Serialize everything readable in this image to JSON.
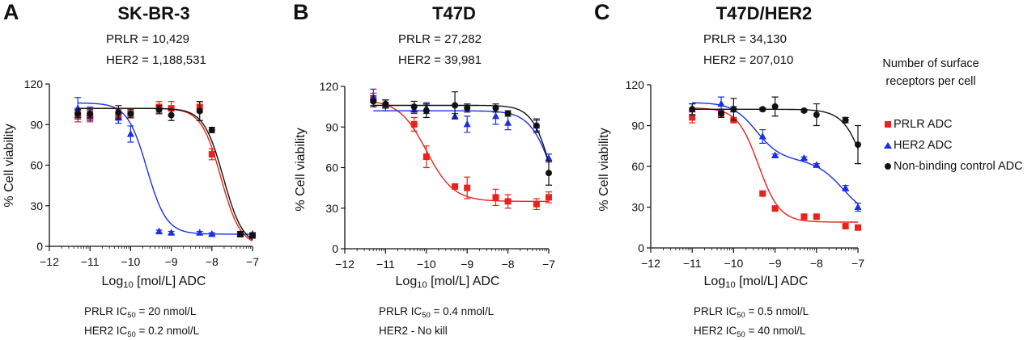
{
  "colors": {
    "prlr": "#e8231b",
    "her2": "#1a2fe6",
    "control": "#111111"
  },
  "legend": {
    "header_line1": "Number of surface",
    "header_line2": "receptors per cell",
    "items": [
      {
        "label": "PRLR ADC",
        "marker": "square",
        "color": "#e8231b"
      },
      {
        "label": "HER2 ADC",
        "marker": "triangle",
        "color": "#1a2fe6"
      },
      {
        "label": "Non-binding control ADC",
        "marker": "circle",
        "color": "#111111"
      }
    ]
  },
  "chart_data": [
    {
      "type": "scatter",
      "panel_letter": "A",
      "title": "SK-BR-3",
      "receptors": {
        "prlr": "PRLR = 10,429",
        "her2": "HER2 = 1,188,531"
      },
      "xlabel": {
        "pre": "Log",
        "sub": "10",
        "post": " [mol/L] ADC"
      },
      "ylabel": "% Cell viability",
      "xlim": [
        -12,
        -7
      ],
      "ylim": [
        0,
        120
      ],
      "xticks": [
        -12,
        -11,
        -10,
        -9,
        -8,
        -7
      ],
      "yticks": [
        0,
        30,
        60,
        90,
        120
      ],
      "ic50": [
        {
          "pre": "PRLR IC",
          "sub": "50",
          "post": " = 20 nmol/L"
        },
        {
          "pre": "HER2 IC",
          "sub": "50",
          "post": " = 0.2 nmol/L"
        }
      ],
      "series": [
        {
          "name": "PRLR ADC",
          "key": "prlr",
          "x": [
            -11.3,
            -11,
            -10.3,
            -10,
            -9.3,
            -9,
            -8.3,
            -8,
            -7.3,
            -7
          ],
          "y": [
            97,
            96,
            96,
            98,
            103,
            102,
            103,
            68,
            9,
            8
          ],
          "err": [
            5,
            4,
            5,
            3,
            4,
            5,
            4,
            4,
            2,
            2
          ],
          "fit": {
            "bottom": 0,
            "phases": [
              {
                "span": 102,
                "logIC50": -7.78,
                "hill": 1.8
              }
            ]
          }
        },
        {
          "name": "HER2 ADC",
          "key": "her2",
          "x": [
            -11.3,
            -11,
            -10.3,
            -10,
            -9.3,
            -9,
            -8.3,
            -8,
            -7.3,
            -7
          ],
          "y": [
            102,
            98,
            95,
            83,
            11,
            10,
            10,
            9,
            9,
            9
          ],
          "err": [
            8,
            5,
            4,
            6,
            1,
            1,
            1,
            1,
            1,
            1
          ],
          "fit": {
            "bottom": 9,
            "phases": [
              {
                "span": 97,
                "logIC50": -9.6,
                "hill": 1.8
              }
            ]
          }
        },
        {
          "name": "Non-binding control ADC",
          "key": "control",
          "x": [
            -11.3,
            -11,
            -10.3,
            -10,
            -9.3,
            -9,
            -8.3,
            -8,
            -7.3,
            -7
          ],
          "y": [
            98,
            98,
            99,
            98,
            101,
            97,
            100,
            86,
            9,
            8
          ],
          "err": [
            3,
            3,
            5,
            3,
            3,
            4,
            7,
            2,
            2,
            2
          ],
          "fit": {
            "bottom": 0,
            "phases": [
              {
                "span": 102,
                "logIC50": -7.72,
                "hill": 1.8
              }
            ]
          }
        }
      ]
    },
    {
      "type": "scatter",
      "panel_letter": "B",
      "title": "T47D",
      "receptors": {
        "prlr": "PRLR = 27,282",
        "her2": "HER2 = 39,981"
      },
      "xlabel": {
        "pre": "Log",
        "sub": "10",
        "post": " [mol/L] ADC"
      },
      "ylabel": "% Cell viability",
      "xlim": [
        -12,
        -7
      ],
      "ylim": [
        0,
        120
      ],
      "xticks": [
        -12,
        -11,
        -10,
        -9,
        -8,
        -7
      ],
      "yticks": [
        0,
        30,
        60,
        90,
        120
      ],
      "ic50": [
        {
          "pre": "PRLR IC",
          "sub": "50",
          "post": " = 0.4 nmol/L"
        },
        {
          "pre": "HER2 - No kill",
          "sub": "",
          "post": ""
        }
      ],
      "series": [
        {
          "name": "PRLR ADC",
          "key": "prlr",
          "x": [
            -11.3,
            -11,
            -10.3,
            -10,
            -9.3,
            -9,
            -8.3,
            -8,
            -7.3,
            -7
          ],
          "y": [
            110,
            106,
            92,
            68,
            46,
            45,
            38,
            35,
            33,
            38
          ],
          "err": [
            5,
            4,
            5,
            8,
            1,
            8,
            6,
            5,
            4,
            4
          ],
          "fit": {
            "bottom": 35,
            "phases": [
              {
                "span": 75,
                "logIC50": -10.0,
                "hill": 1.3
              }
            ]
          }
        },
        {
          "name": "HER2 ADC",
          "key": "her2",
          "x": [
            -11.3,
            -11,
            -10.3,
            -10,
            -9.3,
            -9,
            -8.3,
            -8,
            -7.3,
            -7
          ],
          "y": [
            112,
            106,
            103,
            104,
            98,
            92,
            98,
            93,
            91,
            67
          ],
          "err": [
            6,
            4,
            3,
            4,
            2,
            6,
            6,
            5,
            4,
            3
          ],
          "fit": {
            "bottom": 0,
            "phases": [
              {
                "span": 102,
                "logIC50": -6.85,
                "hill": 1.5
              }
            ]
          }
        },
        {
          "name": "Non-binding control ADC",
          "key": "control",
          "x": [
            -11.3,
            -11,
            -10.3,
            -10,
            -9.3,
            -9,
            -8.3,
            -8,
            -7.3,
            -7
          ],
          "y": [
            109,
            107,
            105,
            102,
            106,
            104,
            104,
            100,
            91,
            56
          ],
          "err": [
            4,
            3,
            4,
            5,
            10,
            3,
            3,
            2,
            5,
            9
          ],
          "fit": {
            "bottom": 0,
            "phases": [
              {
                "span": 106,
                "logIC50": -6.9,
                "hill": 1.8
              }
            ]
          }
        }
      ]
    },
    {
      "type": "scatter",
      "panel_letter": "C",
      "title": "T47D/HER2",
      "receptors": {
        "prlr": "PRLR = 34,130",
        "her2": "HER2 = 207,010"
      },
      "xlabel": {
        "pre": "Log",
        "sub": "10",
        "post": " [mol/L] ADC"
      },
      "ylabel": "% Cell viability",
      "xlim": [
        -12,
        -7
      ],
      "ylim": [
        0,
        120
      ],
      "xticks": [
        -12,
        -11,
        -10,
        -9,
        -8,
        -7
      ],
      "yticks": [
        0,
        30,
        60,
        90,
        120
      ],
      "ic50": [
        {
          "pre": "PRLR IC",
          "sub": "50",
          "post": " = 0.5 nmol/L"
        },
        {
          "pre": "HER2 IC",
          "sub": "50",
          "post": " = 40 nmol/L"
        }
      ],
      "series": [
        {
          "name": "PRLR ADC",
          "key": "prlr",
          "x": [
            -11,
            -10.3,
            -10,
            -9.3,
            -9,
            -8.3,
            -8,
            -7.3,
            -7
          ],
          "y": [
            96,
            99,
            94,
            40,
            29,
            23,
            23,
            16,
            15
          ],
          "err": [
            4,
            3,
            1,
            1,
            1,
            1,
            1,
            1,
            1
          ],
          "fit": {
            "bottom": 19,
            "phases": [
              {
                "span": 84,
                "logIC50": -9.4,
                "hill": 1.7
              }
            ]
          }
        },
        {
          "name": "HER2 ADC",
          "key": "her2",
          "x": [
            -11,
            -10.3,
            -10,
            -9.3,
            -9,
            -8.3,
            -8,
            -7.3,
            -7
          ],
          "y": [
            102,
            106,
            102,
            82,
            68,
            66,
            61,
            44,
            30
          ],
          "err": [
            4,
            5,
            2,
            5,
            1,
            1,
            1,
            2,
            3
          ],
          "fit": {
            "bottom": 21,
            "phases": [
              {
                "span": 42,
                "logIC50": -9.45,
                "hill": 1.5
              },
              {
                "span": 44,
                "logIC50": -7.35,
                "hill": 1.3
              }
            ]
          }
        },
        {
          "name": "Non-binding control ADC",
          "key": "control",
          "x": [
            -11,
            -10.3,
            -10,
            -9.3,
            -9,
            -8.3,
            -8,
            -7.3,
            -7
          ],
          "y": [
            102,
            99,
            102,
            102,
            104,
            101,
            98,
            94,
            76
          ],
          "err": [
            4,
            3,
            8,
            1,
            7,
            1,
            8,
            2,
            14
          ],
          "fit": {
            "bottom": 0,
            "phases": [
              {
                "span": 102,
                "logIC50": -6.75,
                "hill": 1.6
              }
            ]
          }
        }
      ]
    }
  ]
}
